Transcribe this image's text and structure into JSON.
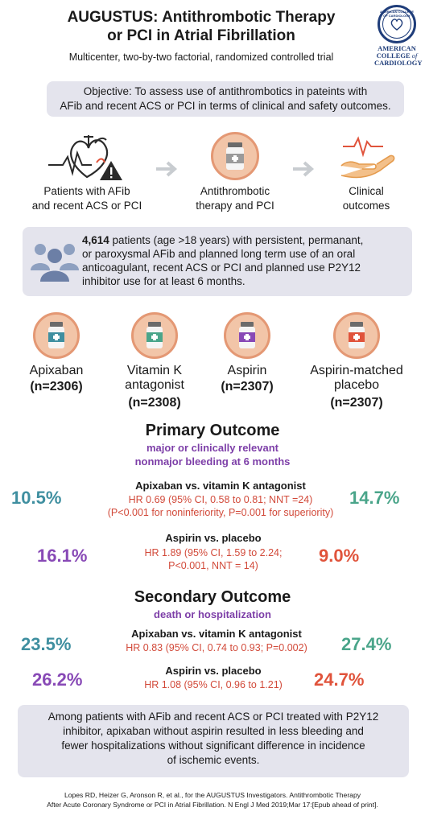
{
  "header": {
    "title_line1": "AUGUSTUS: Antithrombotic Therapy",
    "title_line2": "or PCI in Atrial Fibrillation",
    "subtitle": "Multicenter, two-by-two factorial, randomized controlled trial"
  },
  "logo": {
    "ring_text": "AMERICAN COLLEGE OF CARDIOLOGY",
    "brand_line1": "AMERICAN",
    "brand_line2a": "COLLEGE",
    "brand_of": "of",
    "brand_line3": "CARDIOLOGY",
    "color": "#1f3d7a"
  },
  "objective": {
    "line1": "Objective: To assess use of antithrombotics in pateints with",
    "line2": "AFib and recent ACS or PCI in terms of clinical and safety outcomes."
  },
  "flow": [
    {
      "icon": "heart-warning-icon",
      "line1": "Patients with AFib",
      "line2": "and recent ACS or PCI"
    },
    {
      "icon": "pill-bottle-icon",
      "line1": "Antithrombotic",
      "line2": "therapy and PCI"
    },
    {
      "icon": "heart-hand-icon",
      "line1": "Clinical",
      "line2": "outcomes"
    }
  ],
  "patients": {
    "count": "4,614",
    "line1_rest": " patients (age >18 years) with persistent, permanant,",
    "line2": "or paroxysmal AFib and planned long term use of an oral",
    "line3": "anticoagulant, recent ACS or PCI and planned use P2Y12",
    "line4": "inhibitor use for at least 6 months."
  },
  "arms": [
    {
      "name1": "Apixaban",
      "name2": "",
      "n": "(n=2306)",
      "color": "#3f8fa0"
    },
    {
      "name1": "Vitamin K",
      "name2": "antagonist",
      "n": "(n=2308)",
      "color": "#4aa58a"
    },
    {
      "name1": "Aspirin",
      "name2": "",
      "n": "(n=2307)",
      "color": "#8849b6"
    },
    {
      "name1": "Aspirin-matched",
      "name2": "placebo",
      "n": "(n=2307)",
      "color": "#e0533b"
    }
  ],
  "primary": {
    "title": "Primary Outcome",
    "sub1": "major or clinically relevant",
    "sub2": "nonmajor bleeding at 6 months",
    "cmp1": {
      "left": "10.5%",
      "right": "14.7%",
      "label": "Apixaban vs. vitamin K antagonist",
      "hr1": "HR 0.69 (95% CI, 0.58 to 0.81; NNT =24)",
      "hr2": "(P<0.001 for noninferiority, P=0.001 for superiority)"
    },
    "cmp2": {
      "left": "16.1%",
      "right": "9.0%",
      "label": "Aspirin vs. placebo",
      "hr1": "HR 1.89 (95% CI, 1.59 to 2.24;",
      "hr2": "P<0.001, NNT = 14)"
    }
  },
  "secondary": {
    "title": "Secondary Outcome",
    "sub1": "death or hospitalization",
    "cmp1": {
      "left": "23.5%",
      "right": "27.4%",
      "label": "Apixaban vs. vitamin K antagonist",
      "hr1": "HR 0.83 (95% CI, 0.74 to 0.93; P=0.002)"
    },
    "cmp2": {
      "left": "26.2%",
      "right": "24.7%",
      "label": "Aspirin vs. placebo",
      "hr1": "HR 1.08 (95% CI, 0.96 to 1.21)"
    }
  },
  "conclusion": {
    "line1": "Among patients with AFib and recent ACS or PCI treated with P2Y12",
    "line2": "inhibitor, apixaban without aspirin resulted in less bleeding and",
    "line3": "fewer hospitalizations without significant difference in incidence",
    "line4": "of ischemic events."
  },
  "citation": {
    "line1": "Lopes RD, Heizer G, Aronson R, et al., for the AUGUSTUS Investigators. Antithrombotic Therapy",
    "line2": "After Acute Coronary Syndrome or PCI in Atrial Fibrillation. N Engl J Med 2019;Mar 17:[Epub ahead of print]."
  }
}
